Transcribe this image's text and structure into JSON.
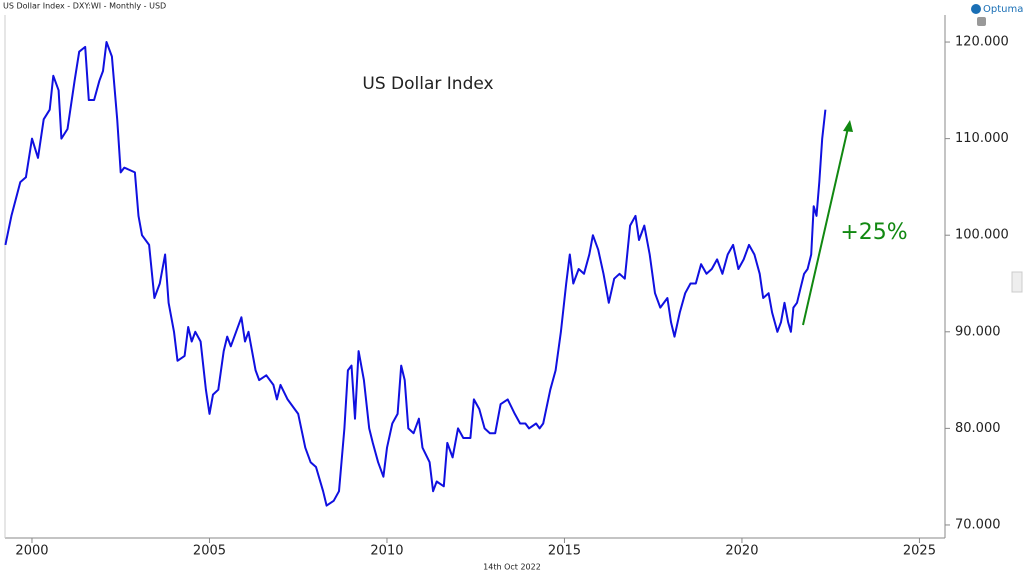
{
  "header": "US Dollar Index - DXY:WI - Monthly - USD",
  "brand": "Optuma",
  "footer": "14th Oct 2022",
  "chart_data": {
    "type": "line",
    "title": "US Dollar Index",
    "annotation": "+25%",
    "series": [
      {
        "name": "US Dollar Index",
        "color": "#1010e0",
        "x": [
          1999.25,
          1999.42,
          1999.67,
          1999.83,
          2000.0,
          2000.17,
          2000.33,
          2000.5,
          2000.6,
          2000.75,
          2000.83,
          2001.0,
          2001.2,
          2001.33,
          2001.5,
          2001.6,
          2001.75,
          2001.9,
          2002.0,
          2002.1,
          2002.25,
          2002.4,
          2002.5,
          2002.6,
          2002.9,
          2003.0,
          2003.1,
          2003.3,
          2003.45,
          2003.6,
          2003.75,
          2003.85,
          2004.0,
          2004.1,
          2004.3,
          2004.4,
          2004.5,
          2004.6,
          2004.75,
          2004.9,
          2005.0,
          2005.1,
          2005.25,
          2005.4,
          2005.5,
          2005.6,
          2005.75,
          2005.9,
          2006.0,
          2006.1,
          2006.3,
          2006.4,
          2006.6,
          2006.8,
          2006.9,
          2007.0,
          2007.2,
          2007.4,
          2007.5,
          2007.7,
          2007.85,
          2008.0,
          2008.2,
          2008.3,
          2008.5,
          2008.65,
          2008.8,
          2008.9,
          2009.0,
          2009.1,
          2009.2,
          2009.35,
          2009.5,
          2009.6,
          2009.75,
          2009.9,
          2010.0,
          2010.15,
          2010.3,
          2010.4,
          2010.5,
          2010.6,
          2010.75,
          2010.9,
          2011.0,
          2011.2,
          2011.3,
          2011.4,
          2011.6,
          2011.7,
          2011.85,
          2012.0,
          2012.15,
          2012.35,
          2012.45,
          2012.6,
          2012.75,
          2012.9,
          2013.05,
          2013.2,
          2013.4,
          2013.6,
          2013.75,
          2013.9,
          2014.0,
          2014.2,
          2014.3,
          2014.4,
          2014.6,
          2014.75,
          2014.9,
          2015.05,
          2015.15,
          2015.25,
          2015.4,
          2015.55,
          2015.7,
          2015.8,
          2015.95,
          2016.1,
          2016.25,
          2016.4,
          2016.55,
          2016.7,
          2016.85,
          2017.0,
          2017.1,
          2017.25,
          2017.4,
          2017.55,
          2017.7,
          2017.9,
          2018.0,
          2018.1,
          2018.25,
          2018.4,
          2018.55,
          2018.7,
          2018.85,
          2019.0,
          2019.15,
          2019.3,
          2019.45,
          2019.6,
          2019.75,
          2019.9,
          2020.05,
          2020.2,
          2020.35,
          2020.5,
          2020.6,
          2020.75,
          2020.85,
          2021.0,
          2021.1,
          2021.2,
          2021.3,
          2021.38,
          2021.45,
          2021.55,
          2021.65,
          2021.75,
          2021.85,
          2021.95,
          2022.02,
          2022.1,
          2022.18,
          2022.26,
          2022.35
        ],
        "values": [
          99,
          102,
          105.5,
          106,
          110,
          108,
          112,
          113,
          116.5,
          115,
          110,
          111,
          116,
          119,
          119.5,
          114,
          114,
          116,
          117,
          120,
          118.5,
          112,
          106.5,
          107,
          106.5,
          102,
          100,
          99,
          93.5,
          95,
          98,
          93,
          90,
          87,
          87.5,
          90.5,
          89,
          90,
          89,
          84,
          81.5,
          83.5,
          84,
          88,
          89.5,
          88.5,
          90,
          91.5,
          89,
          90,
          86,
          85,
          85.5,
          84.5,
          83,
          84.5,
          83,
          82,
          81.5,
          78,
          76.5,
          76,
          73.5,
          72,
          72.5,
          73.5,
          80,
          86,
          86.5,
          81,
          88,
          85,
          80,
          78.5,
          76.5,
          75,
          78,
          80.5,
          81.5,
          86.5,
          85,
          80,
          79.5,
          81,
          78,
          76.5,
          73.5,
          74.5,
          74,
          78.5,
          77,
          80,
          79,
          79,
          83,
          82,
          80,
          79.5,
          79.5,
          82.5,
          83,
          81.5,
          80.5,
          80.5,
          80,
          80.5,
          80,
          80.5,
          84,
          86,
          90,
          95,
          98,
          95,
          96.5,
          96,
          98,
          100,
          98.5,
          96,
          93,
          95.5,
          96,
          95.5,
          101,
          102,
          99.5,
          101,
          98,
          94,
          92.5,
          93.5,
          91,
          89.5,
          92,
          94,
          95,
          95,
          97,
          96,
          96.5,
          97.5,
          96,
          98,
          99,
          96.5,
          97.5,
          99,
          98,
          96,
          93.5,
          94,
          92,
          90,
          91,
          93,
          91,
          90,
          92.5,
          93,
          94.5,
          96,
          96.5,
          98,
          103,
          102,
          105.5,
          110,
          113
        ]
      }
    ],
    "xlim": [
      1999.24,
      2025.72
    ],
    "xticks": [
      2000,
      2005,
      2010,
      2015,
      2020,
      2025
    ],
    "ylim": [
      68.65,
      122.8
    ],
    "yticks": [
      {
        "value": 70,
        "label": "70.000"
      },
      {
        "value": 80,
        "label": "80.000"
      },
      {
        "value": 90,
        "label": "90.000"
      },
      {
        "value": 100,
        "label": "100.000"
      },
      {
        "value": 110,
        "label": "110.000"
      },
      {
        "value": 120,
        "label": "120.000"
      }
    ],
    "grid": false
  }
}
